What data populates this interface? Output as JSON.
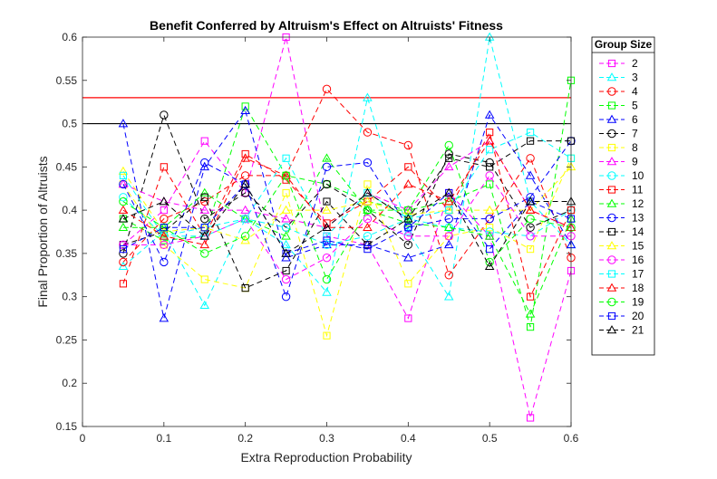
{
  "chart_data": {
    "type": "line",
    "title": "Benefit Conferred by Altruism's Effect on Altruists' Fitness",
    "xlabel": "Extra Reproduction Probability",
    "ylabel": "Final Proportion of Altruists",
    "xlim": [
      0,
      0.6
    ],
    "ylim": [
      0.15,
      0.6
    ],
    "xticks": [
      0,
      0.1,
      0.2,
      0.3,
      0.4,
      0.5,
      0.6
    ],
    "xtick_labels": [
      "0",
      "0.1",
      "0.2",
      "0.3",
      "0.4",
      "0.5",
      "0.6"
    ],
    "yticks": [
      0.15,
      0.2,
      0.25,
      0.3,
      0.35,
      0.4,
      0.45,
      0.5,
      0.55,
      0.6
    ],
    "ytick_labels": [
      "0.15",
      "0.2",
      "0.25",
      "0.3",
      "0.35",
      "0.4",
      "0.45",
      "0.5",
      "0.55",
      "0.6"
    ],
    "grid": false,
    "legend_title": "Group Size",
    "legend_position": "outside-right",
    "x": [
      0.05,
      0.1,
      0.15,
      0.2,
      0.25,
      0.3,
      0.35,
      0.4,
      0.45,
      0.5,
      0.55,
      0.6
    ],
    "reference_lines": [
      {
        "y": 0.53,
        "color": "#ff0000"
      },
      {
        "y": 0.5,
        "color": "#000000"
      }
    ],
    "series": [
      {
        "name": "2",
        "color": "#ff00ff",
        "marker": "square",
        "values": [
          0.36,
          0.4,
          0.48,
          0.42,
          0.6,
          0.37,
          0.36,
          0.275,
          0.42,
          0.37,
          0.16,
          0.33
        ]
      },
      {
        "name": "3",
        "color": "#00ffff",
        "marker": "triangle",
        "values": [
          0.335,
          0.375,
          0.29,
          0.39,
          0.36,
          0.305,
          0.53,
          0.375,
          0.3,
          0.6,
          0.41,
          0.36
        ]
      },
      {
        "name": "4",
        "color": "#ff0000",
        "marker": "circle",
        "values": [
          0.34,
          0.39,
          0.41,
          0.44,
          0.44,
          0.54,
          0.49,
          0.475,
          0.325,
          0.39,
          0.46,
          0.345
        ]
      },
      {
        "name": "5",
        "color": "#00ff00",
        "marker": "square",
        "values": [
          0.39,
          0.365,
          0.37,
          0.52,
          0.44,
          0.43,
          0.41,
          0.4,
          0.41,
          0.43,
          0.265,
          0.55
        ]
      },
      {
        "name": "6",
        "color": "#0000ff",
        "marker": "triangle",
        "values": [
          0.5,
          0.275,
          0.45,
          0.515,
          0.345,
          0.36,
          0.36,
          0.345,
          0.36,
          0.51,
          0.44,
          0.36
        ]
      },
      {
        "name": "7",
        "color": "#000000",
        "marker": "circle",
        "values": [
          0.35,
          0.51,
          0.39,
          0.42,
          0.38,
          0.43,
          0.4,
          0.36,
          0.465,
          0.455,
          0.38,
          0.4
        ]
      },
      {
        "name": "8",
        "color": "#ffff00",
        "marker": "square",
        "values": [
          0.43,
          0.36,
          0.32,
          0.31,
          0.42,
          0.255,
          0.43,
          0.315,
          0.37,
          0.38,
          0.355,
          0.46
        ]
      },
      {
        "name": "9",
        "color": "#ff00ff",
        "marker": "triangle",
        "values": [
          0.43,
          0.41,
          0.4,
          0.4,
          0.39,
          0.38,
          0.42,
          0.4,
          0.45,
          0.48,
          0.4,
          0.38
        ]
      },
      {
        "name": "10",
        "color": "#00ffff",
        "marker": "circle",
        "values": [
          0.415,
          0.37,
          0.38,
          0.39,
          0.38,
          0.36,
          0.37,
          0.39,
          0.38,
          0.375,
          0.37,
          0.4
        ]
      },
      {
        "name": "11",
        "color": "#ff0000",
        "marker": "square",
        "values": [
          0.315,
          0.45,
          0.37,
          0.465,
          0.435,
          0.385,
          0.41,
          0.45,
          0.4,
          0.49,
          0.3,
          0.4
        ]
      },
      {
        "name": "12",
        "color": "#00ff00",
        "marker": "triangle",
        "values": [
          0.38,
          0.38,
          0.42,
          0.39,
          0.37,
          0.46,
          0.4,
          0.385,
          0.38,
          0.37,
          0.28,
          0.39
        ]
      },
      {
        "name": "13",
        "color": "#0000ff",
        "marker": "circle",
        "values": [
          0.43,
          0.34,
          0.455,
          0.43,
          0.3,
          0.45,
          0.455,
          0.38,
          0.39,
          0.39,
          0.415,
          0.48
        ]
      },
      {
        "name": "14",
        "color": "#000000",
        "marker": "square",
        "values": [
          0.36,
          0.375,
          0.415,
          0.31,
          0.33,
          0.41,
          0.36,
          0.39,
          0.46,
          0.45,
          0.48,
          0.48
        ]
      },
      {
        "name": "15",
        "color": "#ffff00",
        "marker": "triangle",
        "values": [
          0.445,
          0.375,
          0.38,
          0.365,
          0.4,
          0.4,
          0.41,
          0.395,
          0.4,
          0.4,
          0.4,
          0.45
        ]
      },
      {
        "name": "16",
        "color": "#ff00ff",
        "marker": "circle",
        "values": [
          0.36,
          0.36,
          0.37,
          0.39,
          0.32,
          0.345,
          0.39,
          0.37,
          0.37,
          0.44,
          0.37,
          0.37
        ]
      },
      {
        "name": "17",
        "color": "#00ffff",
        "marker": "square",
        "values": [
          0.44,
          0.37,
          0.37,
          0.39,
          0.46,
          0.37,
          0.42,
          0.39,
          0.4,
          0.47,
          0.49,
          0.46
        ]
      },
      {
        "name": "18",
        "color": "#ff0000",
        "marker": "triangle",
        "values": [
          0.4,
          0.37,
          0.36,
          0.46,
          0.44,
          0.38,
          0.38,
          0.43,
          0.41,
          0.48,
          0.4,
          0.38
        ]
      },
      {
        "name": "19",
        "color": "#00ff00",
        "marker": "circle",
        "values": [
          0.41,
          0.38,
          0.35,
          0.37,
          0.44,
          0.32,
          0.4,
          0.4,
          0.475,
          0.34,
          0.39,
          0.38
        ]
      },
      {
        "name": "20",
        "color": "#0000ff",
        "marker": "square",
        "values": [
          0.355,
          0.38,
          0.38,
          0.43,
          0.35,
          0.365,
          0.355,
          0.38,
          0.42,
          0.355,
          0.41,
          0.39
        ]
      },
      {
        "name": "21",
        "color": "#000000",
        "marker": "triangle",
        "values": [
          0.39,
          0.41,
          0.37,
          0.43,
          0.35,
          0.38,
          0.42,
          0.39,
          0.42,
          0.335,
          0.41,
          0.41
        ]
      }
    ]
  }
}
